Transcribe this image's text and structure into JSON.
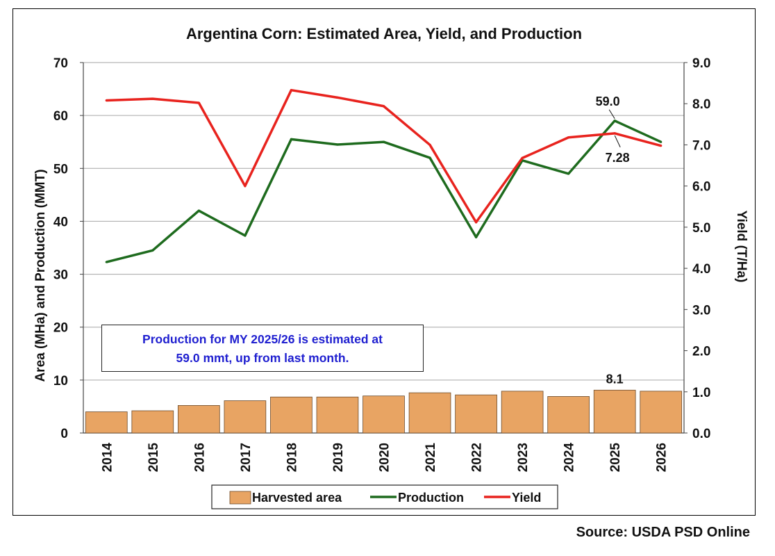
{
  "chart_data": {
    "type": "bar",
    "title": "Argentina Corn: Estimated Area, Yield, and Production",
    "categories": [
      "2014",
      "2015",
      "2016",
      "2017",
      "2018",
      "2019",
      "2020",
      "2021",
      "2022",
      "2023",
      "2024",
      "2025",
      "2026"
    ],
    "ylabel_left": "Area (MHa) and Production (MMT)",
    "ylabel_right": "Yield (T/Ha)",
    "ylim_left": [
      0,
      70
    ],
    "ylim_right": [
      0.0,
      9.0
    ],
    "yticks_left": [
      "0",
      "10",
      "20",
      "30",
      "40",
      "50",
      "60",
      "70"
    ],
    "yticks_right": [
      "0.0",
      "1.0",
      "2.0",
      "3.0",
      "4.0",
      "5.0",
      "6.0",
      "7.0",
      "8.0",
      "9.0"
    ],
    "grid": true,
    "legend_position": "bottom",
    "series": [
      {
        "name": "Harvested area",
        "type": "bar",
        "axis": "left",
        "color": "#e8a463",
        "values": [
          4.0,
          4.2,
          5.2,
          6.1,
          6.8,
          6.8,
          7.0,
          7.6,
          7.2,
          7.9,
          6.9,
          8.1,
          7.9
        ]
      },
      {
        "name": "Production",
        "type": "line",
        "axis": "left",
        "color": "#1e6b1e",
        "values": [
          32.3,
          34.5,
          42.0,
          37.3,
          55.5,
          54.5,
          55.0,
          52.0,
          37.0,
          51.5,
          49.0,
          59.0,
          55.0
        ]
      },
      {
        "name": "Yield",
        "type": "line",
        "axis": "right",
        "color": "#e8231e",
        "values": [
          8.08,
          8.12,
          8.02,
          6.0,
          8.33,
          8.15,
          7.94,
          7.0,
          5.12,
          6.68,
          7.18,
          7.28,
          6.98
        ]
      }
    ],
    "annotations": [
      {
        "text": "59.0",
        "series": "Production",
        "category": "2025"
      },
      {
        "text": "7.28",
        "series": "Yield",
        "category": "2025"
      },
      {
        "text": "8.1",
        "series": "Harvested area",
        "category": "2025"
      }
    ],
    "note_lines": [
      "Production for MY 2025/26 is estimated at",
      "59.0 mmt, up from last month."
    ],
    "source": "Source: USDA PSD Online"
  }
}
